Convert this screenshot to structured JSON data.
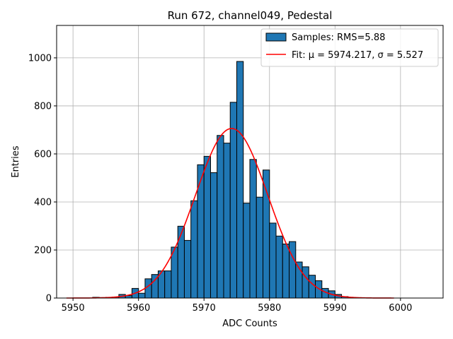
{
  "chart_data": {
    "type": "bar",
    "title": "Run 672, channel049, Pedestal",
    "xlabel": "ADC Counts",
    "ylabel": "Entries",
    "xlim": [
      5947.5,
      6006.5
    ],
    "ylim": [
      0,
      1135
    ],
    "xticks": [
      5950,
      5960,
      5970,
      5980,
      5990,
      6000
    ],
    "yticks": [
      0,
      200,
      400,
      600,
      800,
      1000
    ],
    "grid": true,
    "legend_position": "top-right",
    "legend": {
      "hist_label": "Samples: RMS=5.88",
      "fit_label": "Fit: μ = 5974.217, σ = 5.527"
    },
    "histogram": {
      "bin_width": 1,
      "bin_starts": [
        5953,
        5954,
        5955,
        5956,
        5957,
        5958,
        5959,
        5960,
        5961,
        5962,
        5963,
        5964,
        5965,
        5966,
        5967,
        5968,
        5969,
        5970,
        5971,
        5972,
        5973,
        5974,
        5975,
        5976,
        5977,
        5978,
        5979,
        5980,
        5981,
        5982,
        5983,
        5984,
        5985,
        5986,
        5987,
        5988,
        5989,
        5990,
        5991,
        5992
      ],
      "counts": [
        3,
        2,
        3,
        4,
        15,
        10,
        40,
        20,
        80,
        98,
        113,
        113,
        212,
        299,
        240,
        405,
        555,
        590,
        522,
        677,
        645,
        815,
        985,
        395,
        577,
        420,
        533,
        312,
        258,
        225,
        235,
        150,
        130,
        95,
        72,
        40,
        30,
        15,
        6,
        2
      ],
      "color": "#1f77b4",
      "edge_color": "#000000"
    },
    "fit": {
      "type": "gaussian",
      "mu": 5974.217,
      "sigma": 5.527,
      "amplitude": 706,
      "x_range": [
        5949,
        5999
      ],
      "color": "#ff0000"
    }
  }
}
